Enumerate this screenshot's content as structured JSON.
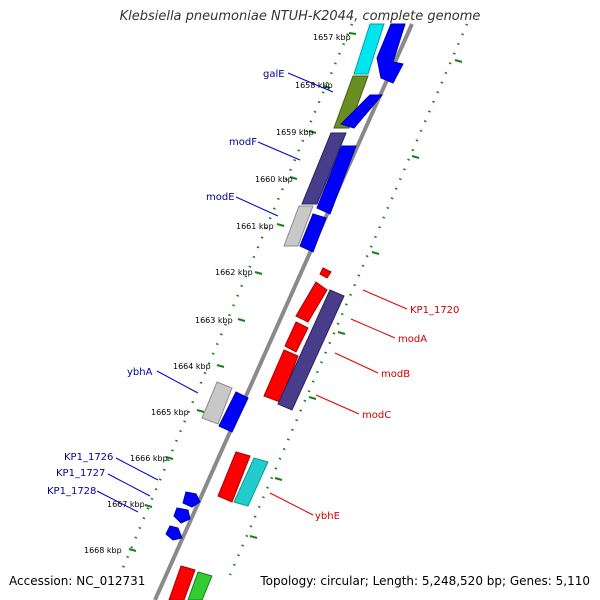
{
  "title": "Klebsiella pneumoniae NTUH-K2044, complete genome",
  "footer": {
    "accession": "Accession: NC_012731",
    "summary": "Topology: circular; Length: 5,248,520 bp; Genes: 5,110"
  },
  "colors": {
    "backbone": "#8a8a8a",
    "forward_strand_label": "#00009b",
    "reverse_strand_label": "#cc0000",
    "tick_marks": "#1a7f1a",
    "leader_forward": "#0000cc",
    "leader_reverse": "#dd0000"
  },
  "ticks": [
    "1657 kbp",
    "1658 kbp",
    "1659 kbp",
    "1660 kbp",
    "1661 kbp",
    "1662 kbp",
    "1663 kbp",
    "1664 kbp",
    "1665 kbp",
    "1666 kbp",
    "1667 kbp",
    "1668 kbp"
  ],
  "gene_labels": {
    "galE": "galE",
    "modF": "modF",
    "modE": "modE",
    "ybhA": "ybhA",
    "KP1_1726": "KP1_1726",
    "KP1_1727": "KP1_1727",
    "KP1_1728": "KP1_1728",
    "KP1_1720": "KP1_1720",
    "modA": "modA",
    "modB": "modB",
    "modC": "modC",
    "ybhE": "ybhE"
  }
}
